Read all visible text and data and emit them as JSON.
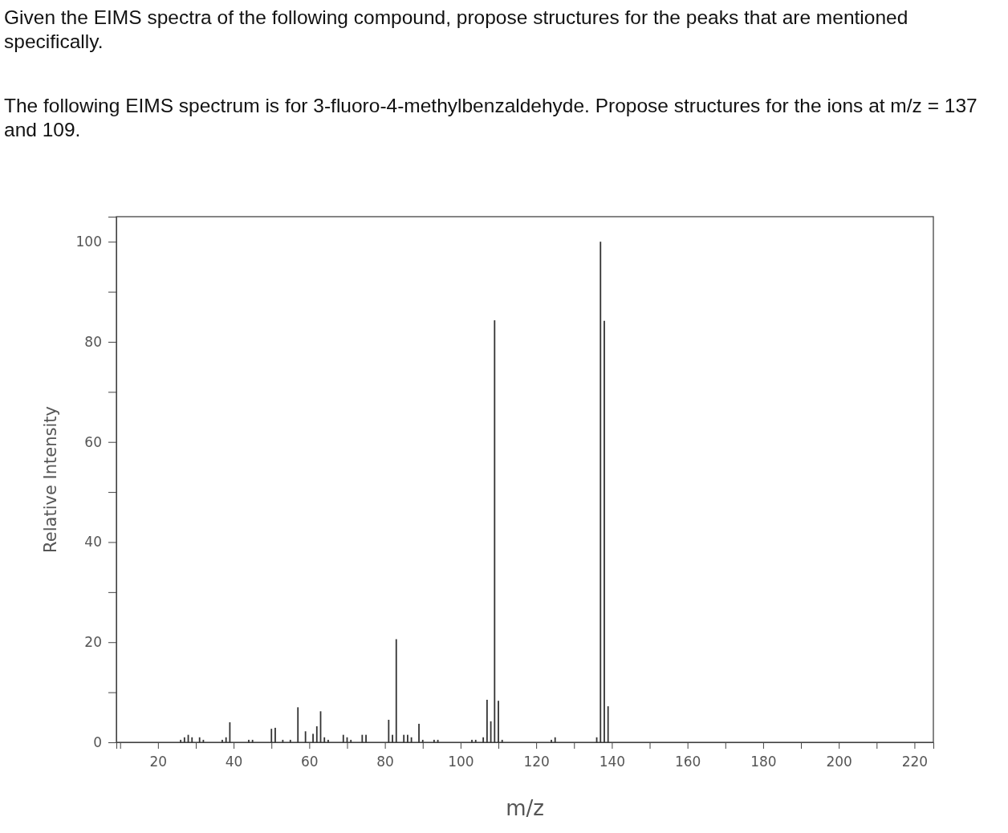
{
  "chart_data": {
    "type": "bar",
    "title": "Given the EIMS spectra of the following compound, propose structures for the peaks that are mentioned specifically.",
    "subtitle": "The following EIMS spectrum is for 3-fluoro-4-methylbenzaldehyde. Propose structures for the ions at m/z = 137 and 109.",
    "xlabel": "m/z",
    "ylabel": "Relative Intensity",
    "x": [
      26,
      27,
      28,
      29,
      31,
      32,
      37,
      38,
      39,
      44,
      45,
      50,
      51,
      53,
      55,
      57,
      59,
      61,
      62,
      63,
      64,
      65,
      69,
      70,
      71,
      74,
      75,
      81,
      82,
      83,
      85,
      86,
      87,
      89,
      90,
      93,
      94,
      103,
      104,
      106,
      107,
      108,
      109,
      110,
      111,
      124,
      125,
      136,
      137,
      138,
      139
    ],
    "values": [
      0.5,
      1,
      1.5,
      1,
      1,
      0.5,
      0.5,
      1,
      4,
      0.5,
      0.5,
      2.7,
      2.9,
      0.5,
      0.5,
      7,
      2.2,
      1.7,
      3.2,
      6.2,
      1,
      0.5,
      1.5,
      1,
      0.5,
      1.5,
      1.5,
      4.5,
      1.5,
      20.6,
      1.5,
      1.5,
      1,
      3.7,
      0.5,
      0.5,
      0.5,
      0.5,
      0.5,
      1,
      8.5,
      4.2,
      84.3,
      8.3,
      0.5,
      0.5,
      1,
      1,
      100,
      84.2,
      7.2
    ],
    "color": "#333333",
    "xlim": [
      9,
      225
    ],
    "ylim": [
      0,
      105
    ],
    "xticks": [
      {
        "value": 10,
        "label": null
      },
      20,
      {
        "value": 30,
        "label": null
      },
      40,
      {
        "value": 50,
        "label": null
      },
      60,
      {
        "value": 70,
        "label": null
      },
      80,
      {
        "value": 90,
        "label": null
      },
      100,
      {
        "value": 110,
        "label": null
      },
      120,
      {
        "value": 130,
        "label": null
      },
      140,
      {
        "value": 150,
        "label": null
      },
      160,
      {
        "value": 170,
        "label": null
      },
      180,
      {
        "value": 190,
        "label": null
      },
      200,
      {
        "value": 210,
        "label": null
      },
      220
    ],
    "yticks": [
      0,
      {
        "value": 10,
        "label": null
      },
      20,
      {
        "value": 30,
        "label": null
      },
      40,
      {
        "value": 50,
        "label": null
      },
      60,
      {
        "value": 70,
        "label": null
      },
      80,
      {
        "value": 90,
        "label": null
      },
      100
    ],
    "grid": false
  }
}
